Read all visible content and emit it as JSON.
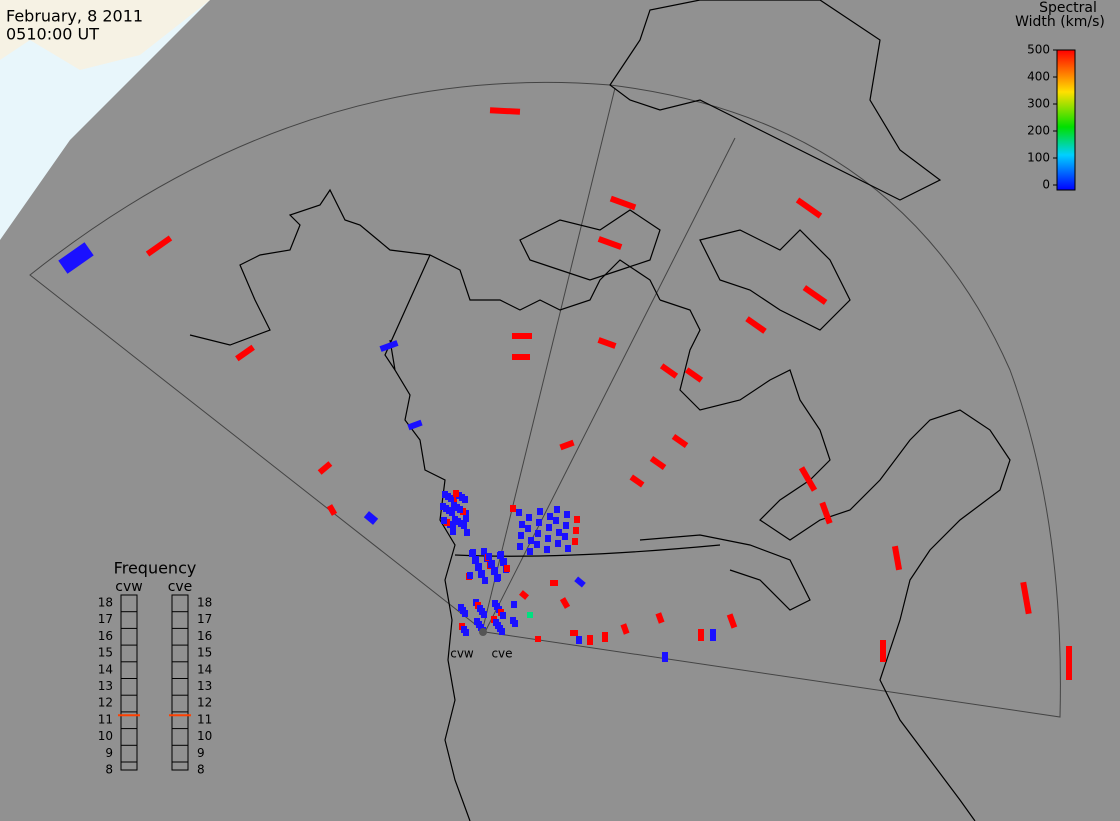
{
  "header": {
    "date": "February, 8 2011",
    "time": "0510:00 UT"
  },
  "colorbar": {
    "title_line1": "Spectral",
    "title_line2": "Width (km/s)",
    "lim": [
      0,
      500
    ],
    "ticks": [
      0,
      100,
      200,
      300,
      400,
      500
    ]
  },
  "frequency": {
    "title": "Frequency",
    "radars": [
      {
        "name": "cvw",
        "value": 10.8
      },
      {
        "name": "cve",
        "value": 10.8
      }
    ],
    "lim": [
      8,
      18
    ],
    "ticks": [
      8,
      9,
      10,
      11,
      12,
      13,
      14,
      15,
      16,
      17,
      18
    ]
  },
  "radar_sites": [
    "cvw",
    "cve"
  ]
}
